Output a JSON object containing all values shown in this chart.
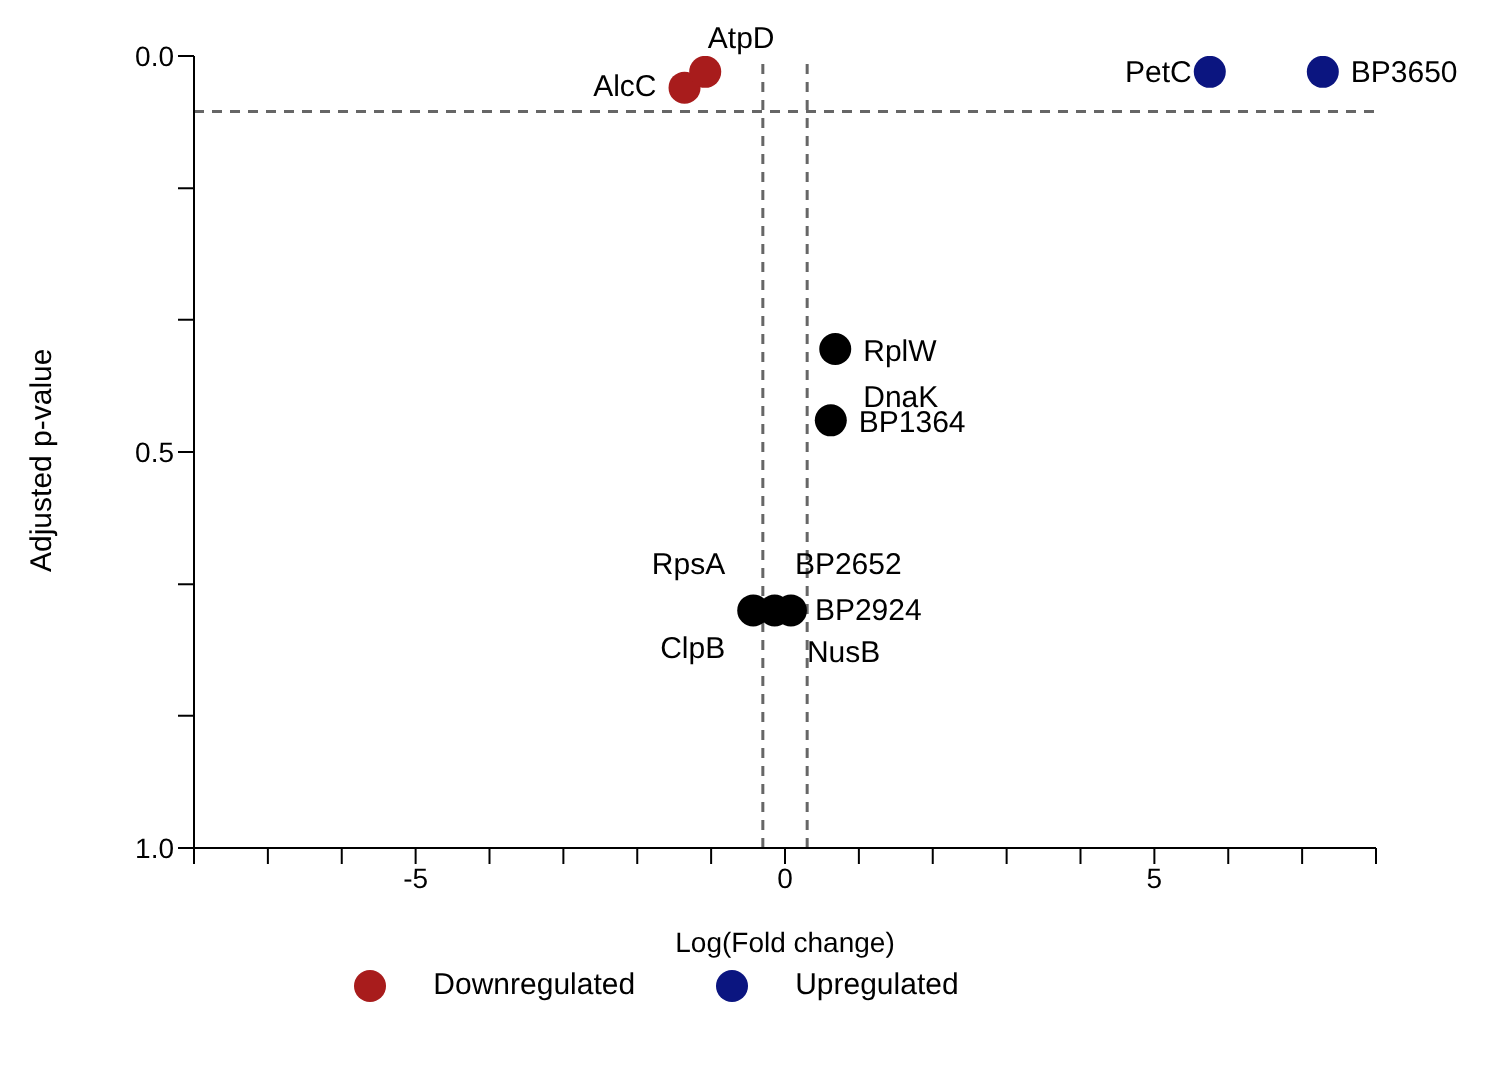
{
  "chart_data": {
    "type": "scatter",
    "xlabel": "Log(Fold change)",
    "ylabel": "Adjusted p-value",
    "xlim": [
      -8,
      8
    ],
    "xticks": [
      {
        "value": -8,
        "label": null
      },
      {
        "value": -7,
        "label": null
      },
      {
        "value": -6,
        "label": null
      },
      -5,
      {
        "value": -4,
        "label": null
      },
      {
        "value": -3,
        "label": null
      },
      {
        "value": -2,
        "label": null
      },
      {
        "value": -1,
        "label": null
      },
      0,
      {
        "value": 1,
        "label": null
      },
      {
        "value": 2,
        "label": null
      },
      {
        "value": 3,
        "label": null
      },
      {
        "value": 4,
        "label": null
      },
      5,
      {
        "value": 6,
        "label": null
      },
      {
        "value": 7,
        "label": null
      },
      {
        "value": 8,
        "label": null
      }
    ],
    "ylim": [
      1.0,
      0.0
    ],
    "yticks": [
      {
        "value": 0,
        "label": "0.0"
      },
      {
        "value": 0.167,
        "label": null
      },
      {
        "value": 0.333,
        "label": null
      },
      0.5,
      {
        "value": 0.667,
        "label": null
      },
      {
        "value": 0.833,
        "label": null
      },
      {
        "value": 1,
        "label": "1.0"
      }
    ],
    "series": [
      {
        "name": "Downregulated",
        "color": "#a81c1c",
        "x": [
          -1.36,
          -1.08
        ],
        "values": [
          0.04,
          0.02
        ]
      },
      {
        "name": "Upregulated",
        "color": "#0b1580",
        "x": [
          5.75,
          7.28
        ],
        "values": [
          0.02,
          0.02
        ]
      },
      {
        "color": "#000000",
        "x": [
          0.68,
          0.62,
          -0.43,
          -0.14,
          0.08
        ],
        "values": [
          0.37,
          0.46,
          0.7,
          0.7,
          0.7
        ]
      }
    ],
    "ref_lines": [
      {
        "axis": "x",
        "value": -0.3,
        "color": "#666666",
        "line_style": "dashed"
      },
      {
        "axis": "x",
        "value": 0.3,
        "color": "#666666",
        "line_style": "dashed"
      },
      {
        "axis": "y",
        "value": 0.07,
        "color": "#666666",
        "line_style": "dashed"
      }
    ],
    "annotations": [
      {
        "text": "AtpD",
        "x": -1.08,
        "y": 0.02
      },
      {
        "text": "AlcC",
        "x": -1.36,
        "y": 0.04
      },
      {
        "text": "PetC",
        "x": 5.75,
        "y": 0.02
      },
      {
        "text": "BP3650",
        "x": 7.28,
        "y": 0.02
      },
      {
        "text": "RplW",
        "x": 0.68,
        "y": 0.37
      },
      {
        "text": "DnaK",
        "x": 0.68,
        "y": 0.37
      },
      {
        "text": "BP1364",
        "x": 0.62,
        "y": 0.46
      },
      {
        "text": "RpsA",
        "x": -0.43,
        "y": 0.7
      },
      {
        "text": "BP2652",
        "x": 0.08,
        "y": 0.7
      },
      {
        "text": "BP2924",
        "x": 0.08,
        "y": 0.7
      },
      {
        "text": "ClpB",
        "x": -0.43,
        "y": 0.7
      },
      {
        "text": "NusB",
        "x": 0.08,
        "y": 0.7
      }
    ],
    "marker": "circle",
    "grid": false,
    "legend": "bottom"
  }
}
